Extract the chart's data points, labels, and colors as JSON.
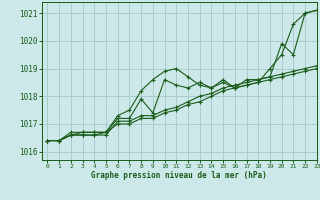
{
  "background_color": "#cce8e8",
  "grid_color": "#aacccc",
  "line_color": "#1a5c1a",
  "title": "Graphe pression niveau de la mer (hPa)",
  "xlim": [
    -0.5,
    23
  ],
  "ylim": [
    1015.7,
    1021.4
  ],
  "yticks": [
    1016,
    1017,
    1018,
    1019,
    1020,
    1021
  ],
  "xticks": [
    0,
    1,
    2,
    3,
    4,
    5,
    6,
    7,
    8,
    9,
    10,
    11,
    12,
    13,
    14,
    15,
    16,
    17,
    18,
    19,
    20,
    21,
    22,
    23
  ],
  "series": [
    [
      1016.4,
      1016.4,
      1016.6,
      1016.7,
      1016.7,
      1016.7,
      1017.3,
      1017.5,
      1018.2,
      1018.6,
      1018.9,
      1019.0,
      1018.7,
      1018.4,
      1018.3,
      1018.5,
      1018.3,
      1018.4,
      1018.5,
      1019.0,
      1019.5,
      1020.6,
      1021.0,
      1021.1
    ],
    [
      1016.4,
      1016.4,
      1016.7,
      1016.7,
      1016.7,
      1016.7,
      1017.2,
      1017.2,
      1017.9,
      1017.4,
      1018.6,
      1018.4,
      1018.3,
      1018.5,
      1018.3,
      1018.6,
      1018.3,
      1018.6,
      1018.6,
      1018.7,
      1019.9,
      1019.5,
      1021.0,
      1021.1
    ],
    [
      1016.4,
      1016.4,
      1016.6,
      1016.6,
      1016.6,
      1016.6,
      1017.1,
      1017.1,
      1017.3,
      1017.3,
      1017.5,
      1017.6,
      1017.8,
      1018.0,
      1018.1,
      1018.3,
      1018.4,
      1018.5,
      1018.6,
      1018.7,
      1018.8,
      1018.9,
      1019.0,
      1019.1
    ],
    [
      1016.4,
      1016.4,
      1016.6,
      1016.6,
      1016.6,
      1016.7,
      1017.0,
      1017.0,
      1017.2,
      1017.2,
      1017.4,
      1017.5,
      1017.7,
      1017.8,
      1018.0,
      1018.2,
      1018.3,
      1018.4,
      1018.5,
      1018.6,
      1018.7,
      1018.8,
      1018.9,
      1019.0
    ]
  ]
}
